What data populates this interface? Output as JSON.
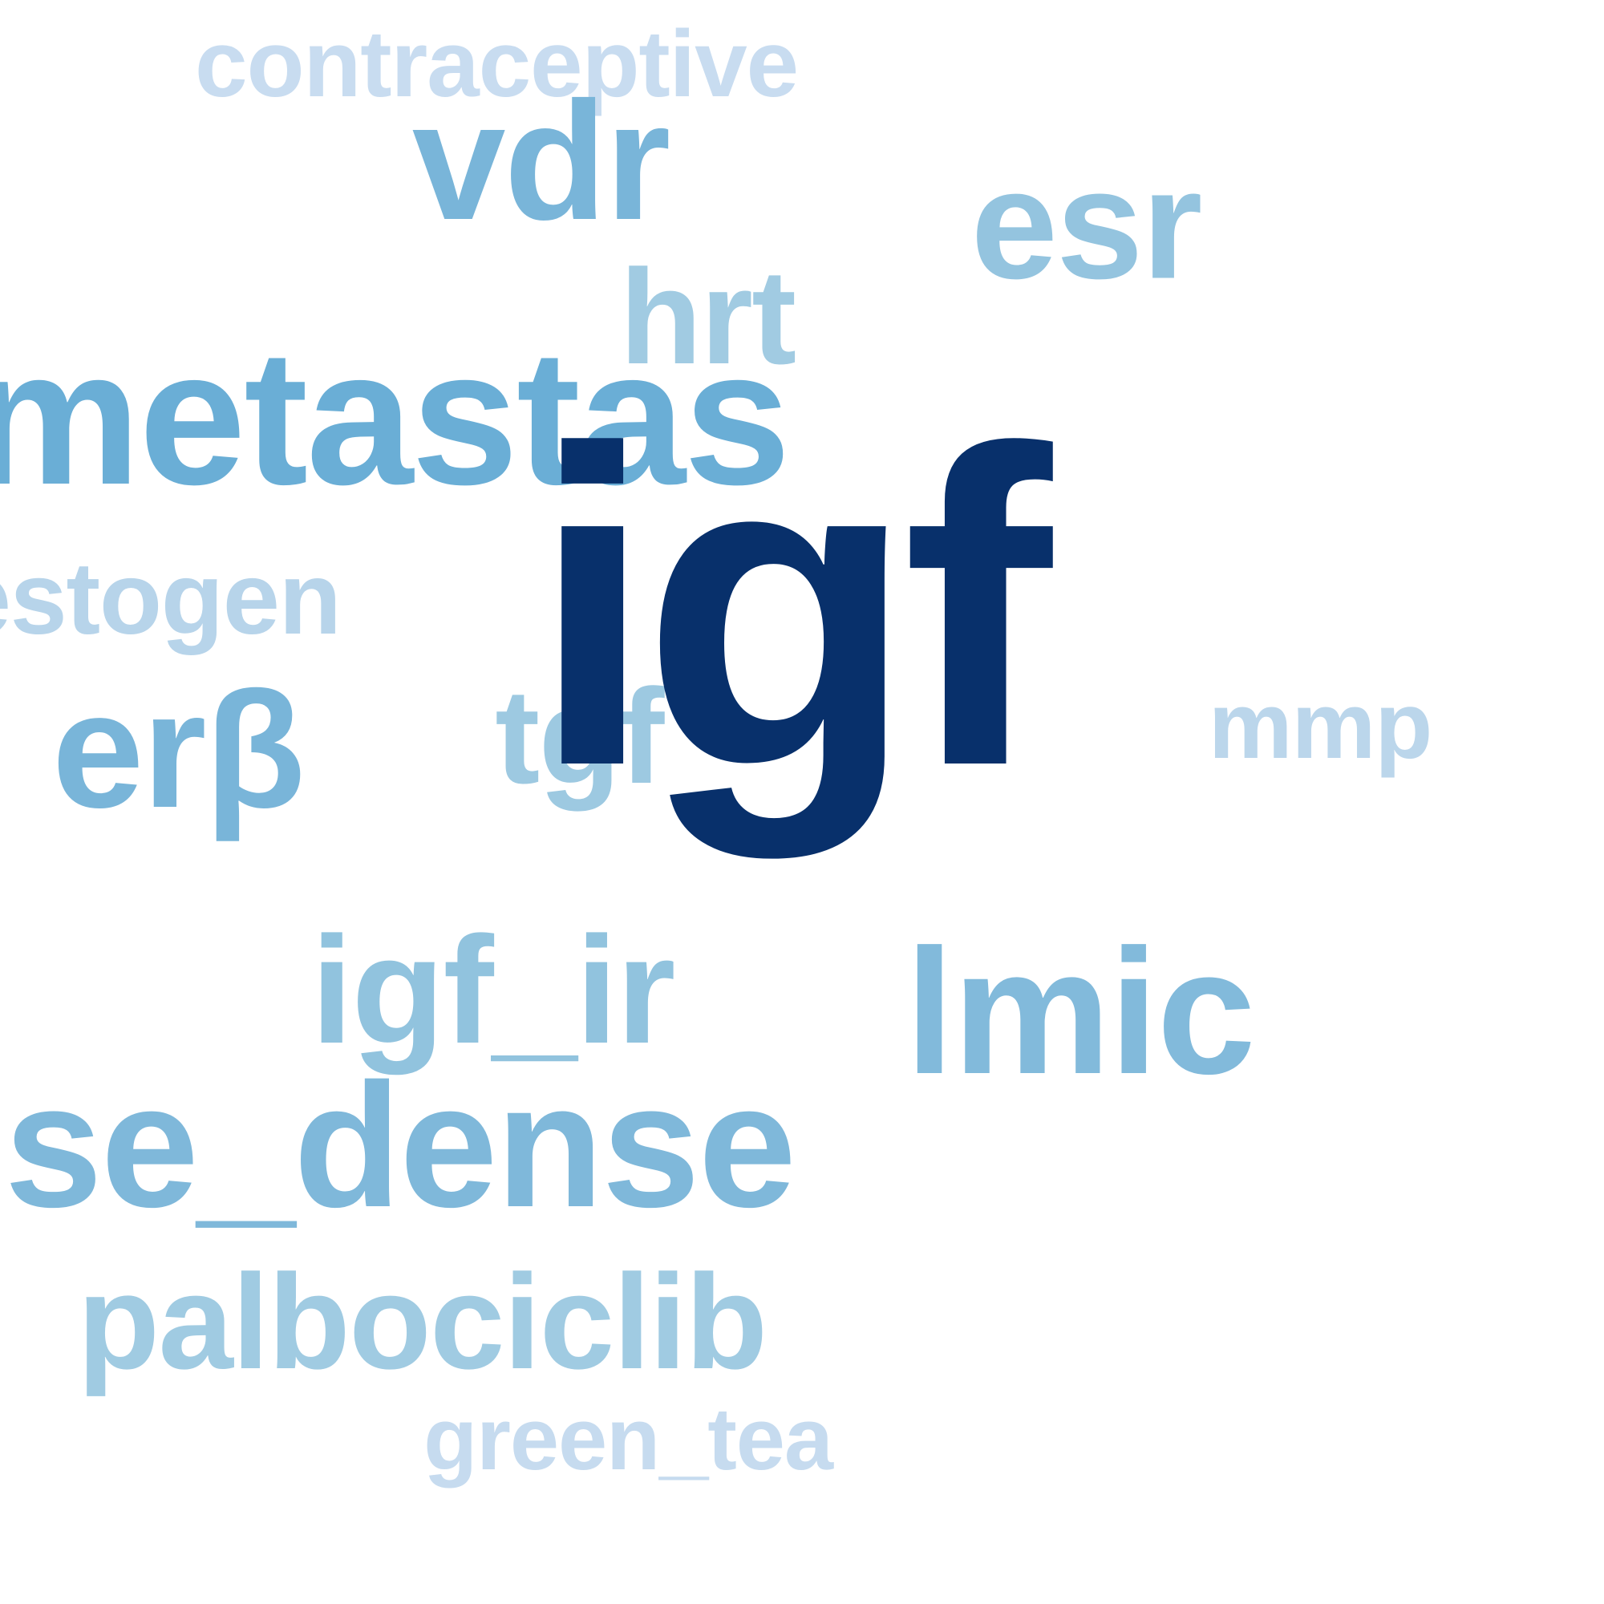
{
  "words": {
    "igf": {
      "text": "igf",
      "color": "#08306b"
    },
    "brain_metastas": {
      "text": "brain_metastas",
      "color": "#6aaed6"
    },
    "dose_dense": {
      "text": "dose_dense",
      "color": "#7fb8da"
    },
    "lmic": {
      "text": "lmic",
      "color": "#82badb"
    },
    "vdr": {
      "text": "vdr",
      "color": "#79b5d9"
    },
    "erb": {
      "text": "erβ",
      "color": "#79b5d9"
    },
    "esr": {
      "text": "esr",
      "color": "#94c4df"
    },
    "igf_ir": {
      "text": "igf_ir",
      "color": "#91c3de"
    },
    "hrt": {
      "text": "hrt",
      "color": "#a1cbe2"
    },
    "tgf": {
      "text": "tgf",
      "color": "#9dc9e1"
    },
    "palbociclib": {
      "text": "palbociclib",
      "color": "#a0cbe2"
    },
    "progestogen": {
      "text": "progestogen",
      "color": "#b7d4ea"
    },
    "mmp": {
      "text": "mmp",
      "color": "#bbd6eb"
    },
    "contraceptive": {
      "text": "contraceptive",
      "color": "#c8dcf0"
    },
    "green_tea": {
      "text": "green_tea",
      "color": "#c6dbef"
    }
  }
}
